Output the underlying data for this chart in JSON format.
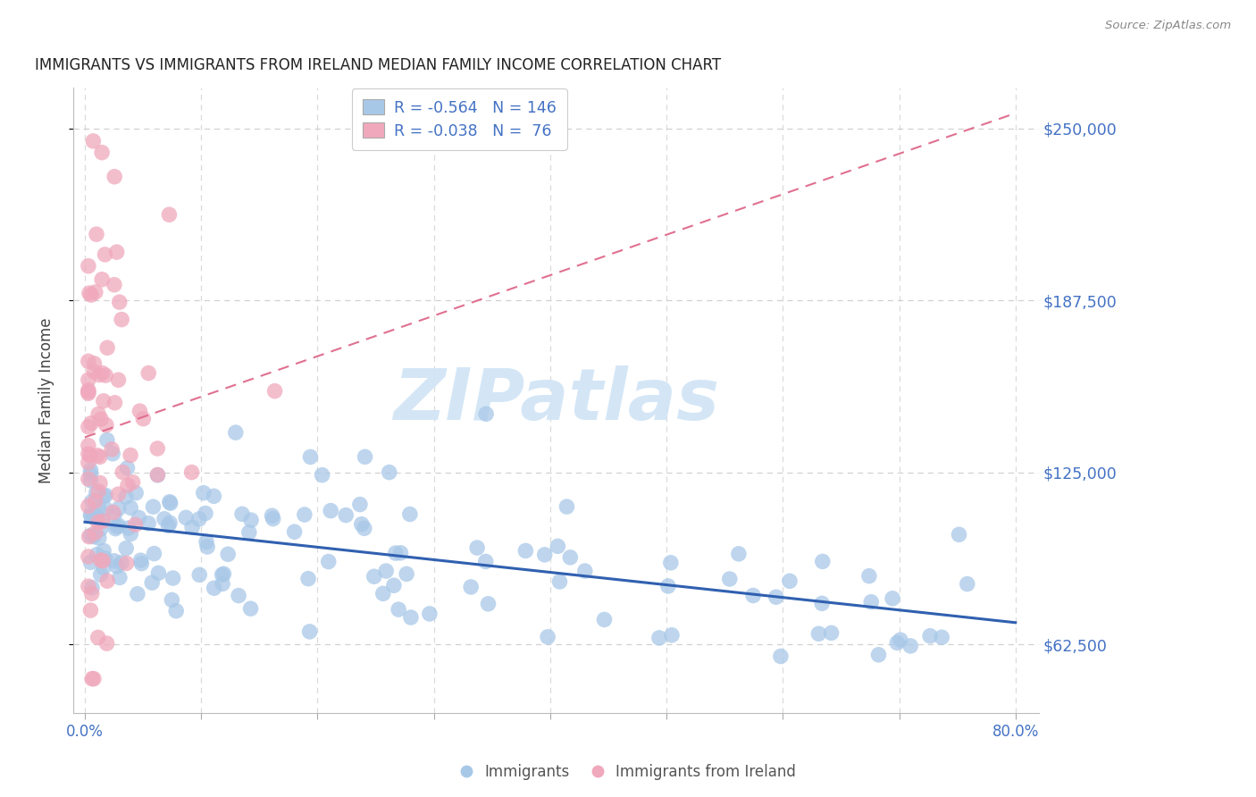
{
  "title": "IMMIGRANTS VS IMMIGRANTS FROM IRELAND MEDIAN FAMILY INCOME CORRELATION CHART",
  "source": "Source: ZipAtlas.com",
  "ylabel": "Median Family Income",
  "yticks": [
    62500,
    125000,
    187500,
    250000
  ],
  "ytick_labels": [
    "$62,500",
    "$125,000",
    "$187,500",
    "$250,000"
  ],
  "xlim": [
    -0.01,
    0.82
  ],
  "ylim": [
    37500,
    265000
  ],
  "legend_blue_r": "-0.564",
  "legend_blue_n": "146",
  "legend_pink_r": "-0.038",
  "legend_pink_n": " 76",
  "blue_color": "#a8c8e8",
  "pink_color": "#f0a8bc",
  "blue_line_color": "#3060b0",
  "pink_line_color": "#e07090",
  "axis_label_color": "#4472c4",
  "title_color": "#222222",
  "source_color": "#888888",
  "watermark": "ZIPatlas",
  "watermark_color": "#d0e4f5",
  "grid_color": "#cccccc",
  "ylabel_color": "#444444"
}
